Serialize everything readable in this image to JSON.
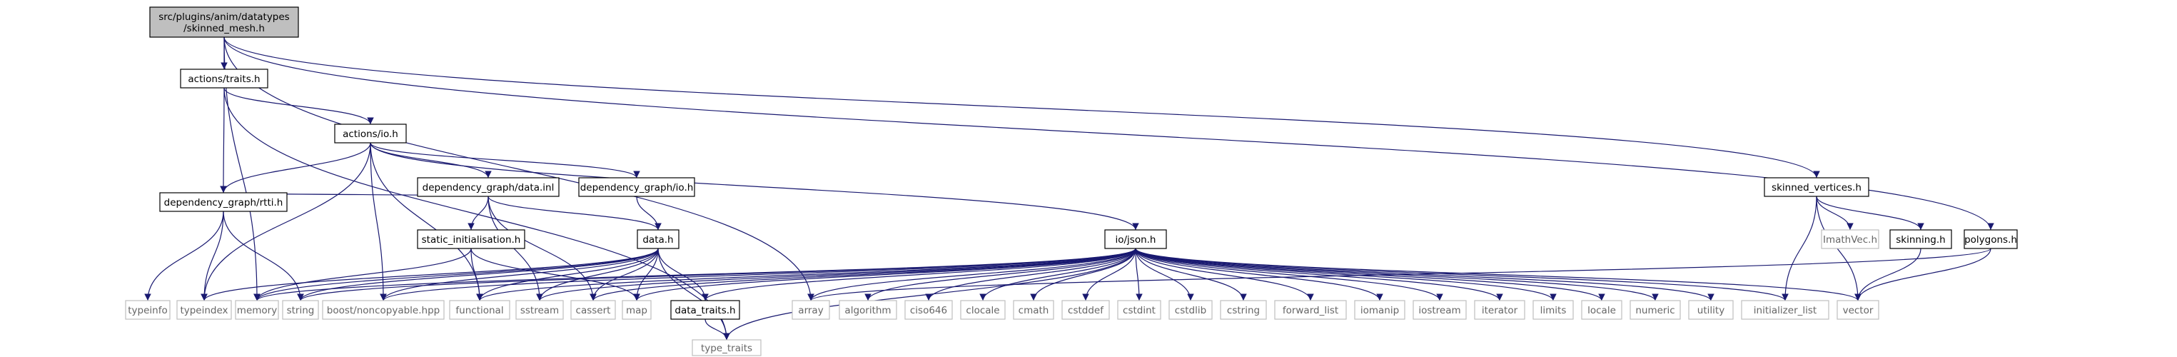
{
  "diagram": {
    "type": "include-dependency-graph",
    "colors": {
      "edge": "#191970",
      "root_fill": "#bfbfbf",
      "documented_border": "#000000",
      "external_border": "#bfbfbf",
      "documented_text": "#000000",
      "external_text": "#666666"
    },
    "nodes": [
      {
        "id": "root",
        "lines": [
          "src/plugins/anim/datatypes",
          "/skinned_mesh.h"
        ],
        "kind": "root"
      },
      {
        "id": "actions_traits",
        "lines": [
          "actions/traits.h"
        ],
        "kind": "documented"
      },
      {
        "id": "actions_io",
        "lines": [
          "actions/io.h"
        ],
        "kind": "documented"
      },
      {
        "id": "dg_rtti",
        "lines": [
          "dependency_graph/rtti.h"
        ],
        "kind": "documented"
      },
      {
        "id": "dg_data_inl",
        "lines": [
          "dependency_graph/data.inl"
        ],
        "kind": "documented"
      },
      {
        "id": "dg_io",
        "lines": [
          "dependency_graph/io.h"
        ],
        "kind": "documented"
      },
      {
        "id": "static_init",
        "lines": [
          "static_initialisation.h"
        ],
        "kind": "documented"
      },
      {
        "id": "data_h",
        "lines": [
          "data.h"
        ],
        "kind": "documented"
      },
      {
        "id": "io_json",
        "lines": [
          "io/json.h"
        ],
        "kind": "documented"
      },
      {
        "id": "data_traits",
        "lines": [
          "data_traits.h"
        ],
        "kind": "documented"
      },
      {
        "id": "skinned_vertices",
        "lines": [
          "skinned_vertices.h"
        ],
        "kind": "documented"
      },
      {
        "id": "skinning",
        "lines": [
          "skinning.h"
        ],
        "kind": "documented"
      },
      {
        "id": "polygons",
        "lines": [
          "polygons.h"
        ],
        "kind": "documented"
      },
      {
        "id": "typeinfo",
        "lines": [
          "typeinfo"
        ],
        "kind": "external"
      },
      {
        "id": "typeindex",
        "lines": [
          "typeindex"
        ],
        "kind": "external"
      },
      {
        "id": "memory",
        "lines": [
          "memory"
        ],
        "kind": "external"
      },
      {
        "id": "string",
        "lines": [
          "string"
        ],
        "kind": "external"
      },
      {
        "id": "boost",
        "lines": [
          "boost/noncopyable.hpp"
        ],
        "kind": "external"
      },
      {
        "id": "functional",
        "lines": [
          "functional"
        ],
        "kind": "external"
      },
      {
        "id": "sstream",
        "lines": [
          "sstream"
        ],
        "kind": "external"
      },
      {
        "id": "cassert",
        "lines": [
          "cassert"
        ],
        "kind": "external"
      },
      {
        "id": "map",
        "lines": [
          "map"
        ],
        "kind": "external"
      },
      {
        "id": "array",
        "lines": [
          "array"
        ],
        "kind": "external"
      },
      {
        "id": "algorithm",
        "lines": [
          "algorithm"
        ],
        "kind": "external"
      },
      {
        "id": "ciso646",
        "lines": [
          "ciso646"
        ],
        "kind": "external"
      },
      {
        "id": "clocale",
        "lines": [
          "clocale"
        ],
        "kind": "external"
      },
      {
        "id": "cmath",
        "lines": [
          "cmath"
        ],
        "kind": "external"
      },
      {
        "id": "cstddef",
        "lines": [
          "cstddef"
        ],
        "kind": "external"
      },
      {
        "id": "cstdint",
        "lines": [
          "cstdint"
        ],
        "kind": "external"
      },
      {
        "id": "cstdlib",
        "lines": [
          "cstdlib"
        ],
        "kind": "external"
      },
      {
        "id": "cstring",
        "lines": [
          "cstring"
        ],
        "kind": "external"
      },
      {
        "id": "forward_list",
        "lines": [
          "forward_list"
        ],
        "kind": "external"
      },
      {
        "id": "iomanip",
        "lines": [
          "iomanip"
        ],
        "kind": "external"
      },
      {
        "id": "iostream",
        "lines": [
          "iostream"
        ],
        "kind": "external"
      },
      {
        "id": "iterator",
        "lines": [
          "iterator"
        ],
        "kind": "external"
      },
      {
        "id": "limits",
        "lines": [
          "limits"
        ],
        "kind": "external"
      },
      {
        "id": "locale",
        "lines": [
          "locale"
        ],
        "kind": "external"
      },
      {
        "id": "numeric",
        "lines": [
          "numeric"
        ],
        "kind": "external"
      },
      {
        "id": "utility",
        "lines": [
          "utility"
        ],
        "kind": "external"
      },
      {
        "id": "initializer_list",
        "lines": [
          "initializer_list"
        ],
        "kind": "external"
      },
      {
        "id": "vector",
        "lines": [
          "vector"
        ],
        "kind": "external"
      },
      {
        "id": "type_traits",
        "lines": [
          "type_traits"
        ],
        "kind": "external"
      },
      {
        "id": "imathvec",
        "lines": [
          "ImathVec.h"
        ],
        "kind": "external"
      }
    ],
    "edges": [
      [
        "root",
        "actions_traits"
      ],
      [
        "root",
        "skinned_vertices"
      ],
      [
        "root",
        "polygons"
      ],
      [
        "root",
        "memory"
      ],
      [
        "root",
        "array"
      ],
      [
        "actions_traits",
        "actions_io"
      ],
      [
        "actions_traits",
        "dg_rtti"
      ],
      [
        "actions_traits",
        "type_traits"
      ],
      [
        "actions_io",
        "dg_rtti"
      ],
      [
        "actions_io",
        "dg_data_inl"
      ],
      [
        "actions_io",
        "dg_io"
      ],
      [
        "actions_io",
        "io_json"
      ],
      [
        "actions_io",
        "typeindex"
      ],
      [
        "actions_io",
        "boost"
      ],
      [
        "actions_io",
        "functional"
      ],
      [
        "dg_rtti",
        "typeinfo"
      ],
      [
        "dg_rtti",
        "typeindex"
      ],
      [
        "dg_rtti",
        "string"
      ],
      [
        "dg_data_inl",
        "dg_rtti"
      ],
      [
        "dg_data_inl",
        "static_init"
      ],
      [
        "dg_data_inl",
        "data_h"
      ],
      [
        "dg_data_inl",
        "sstream"
      ],
      [
        "dg_data_inl",
        "cassert"
      ],
      [
        "dg_io",
        "data_h"
      ],
      [
        "static_init",
        "memory"
      ],
      [
        "static_init",
        "functional"
      ],
      [
        "static_init",
        "map"
      ],
      [
        "data_h",
        "typeindex"
      ],
      [
        "data_h",
        "memory"
      ],
      [
        "data_h",
        "string"
      ],
      [
        "data_h",
        "boost"
      ],
      [
        "data_h",
        "functional"
      ],
      [
        "data_h",
        "sstream"
      ],
      [
        "data_h",
        "cassert"
      ],
      [
        "data_h",
        "map"
      ],
      [
        "data_h",
        "data_traits"
      ],
      [
        "data_h",
        "type_traits"
      ],
      [
        "data_traits",
        "type_traits"
      ],
      [
        "io_json",
        "memory"
      ],
      [
        "io_json",
        "string"
      ],
      [
        "io_json",
        "boost"
      ],
      [
        "io_json",
        "functional"
      ],
      [
        "io_json",
        "sstream"
      ],
      [
        "io_json",
        "cassert"
      ],
      [
        "io_json",
        "map"
      ],
      [
        "io_json",
        "array"
      ],
      [
        "io_json",
        "algorithm"
      ],
      [
        "io_json",
        "ciso646"
      ],
      [
        "io_json",
        "clocale"
      ],
      [
        "io_json",
        "cmath"
      ],
      [
        "io_json",
        "cstddef"
      ],
      [
        "io_json",
        "cstdint"
      ],
      [
        "io_json",
        "cstdlib"
      ],
      [
        "io_json",
        "cstring"
      ],
      [
        "io_json",
        "forward_list"
      ],
      [
        "io_json",
        "iomanip"
      ],
      [
        "io_json",
        "iostream"
      ],
      [
        "io_json",
        "iterator"
      ],
      [
        "io_json",
        "limits"
      ],
      [
        "io_json",
        "locale"
      ],
      [
        "io_json",
        "numeric"
      ],
      [
        "io_json",
        "utility"
      ],
      [
        "io_json",
        "initializer_list"
      ],
      [
        "io_json",
        "vector"
      ],
      [
        "io_json",
        "type_traits"
      ],
      [
        "io_json",
        "data_traits"
      ],
      [
        "skinned_vertices",
        "imathvec"
      ],
      [
        "skinned_vertices",
        "skinning"
      ],
      [
        "skinned_vertices",
        "initializer_list"
      ],
      [
        "skinned_vertices",
        "vector"
      ],
      [
        "skinning",
        "vector"
      ],
      [
        "polygons",
        "array"
      ],
      [
        "polygons",
        "vector"
      ]
    ]
  }
}
